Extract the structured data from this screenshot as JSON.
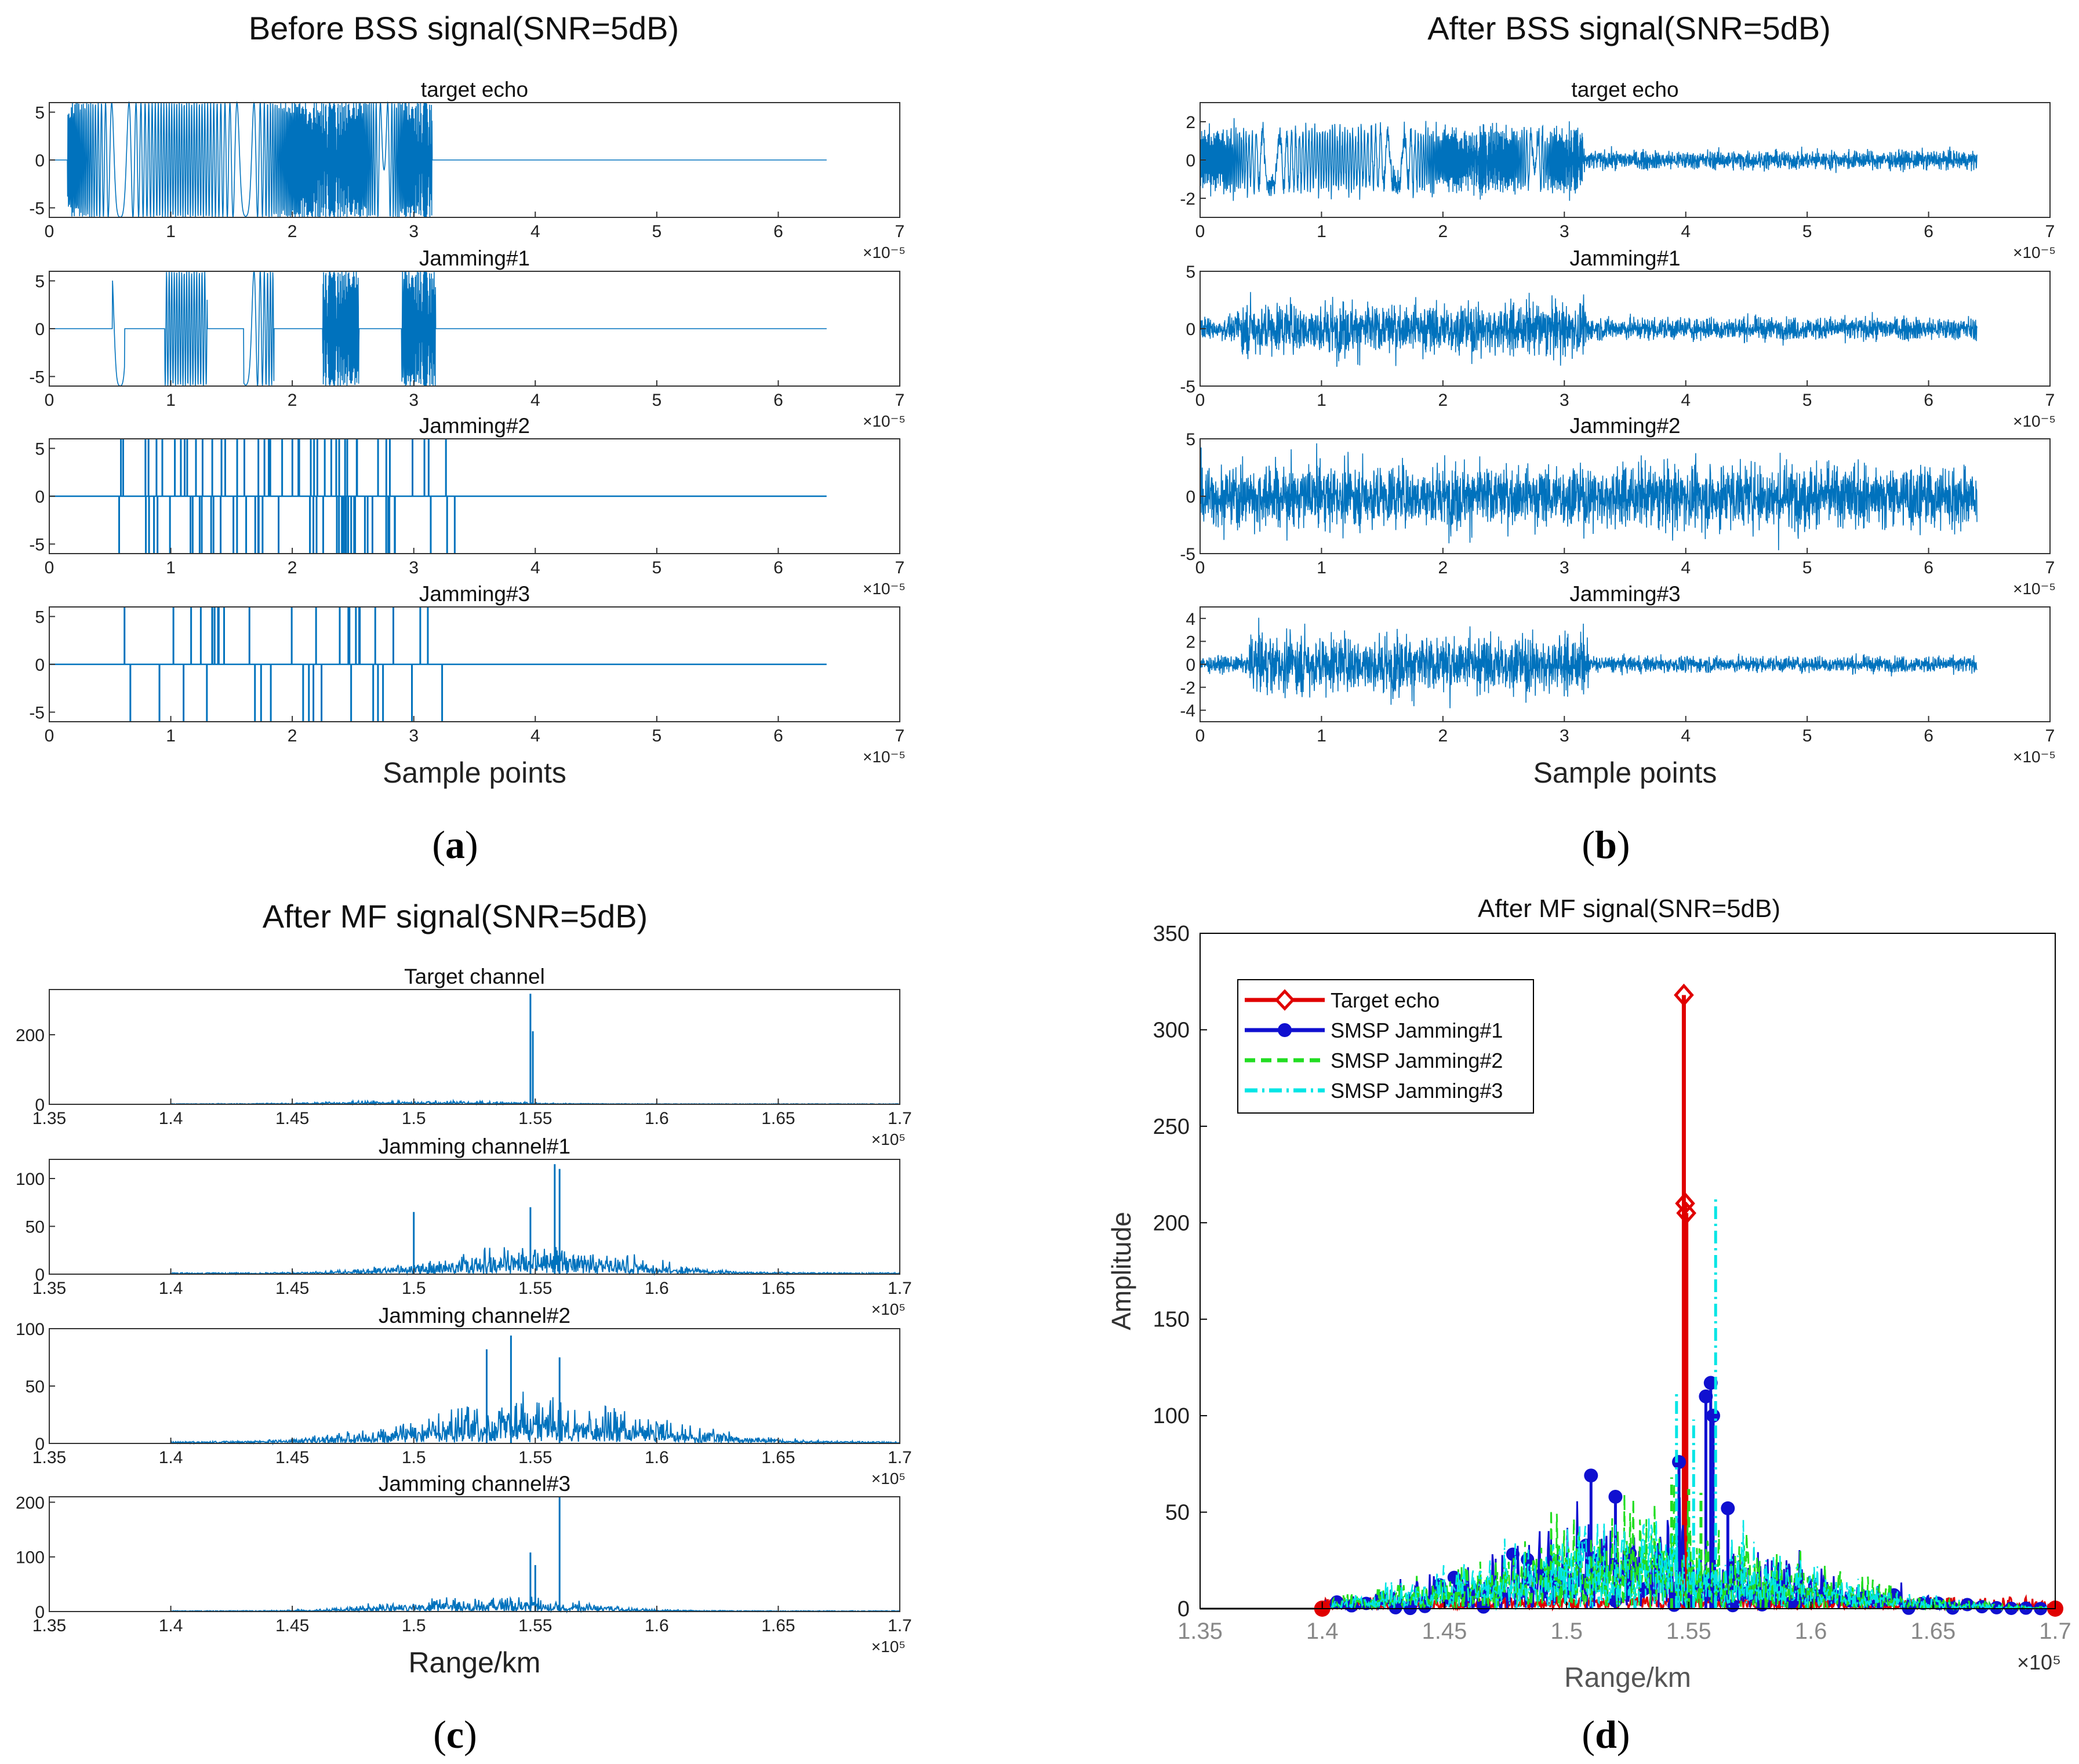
{
  "colors": {
    "signal": "#0072BD",
    "target_echo": "#E00000",
    "jam1": "#1010D0",
    "jam2": "#22DD22",
    "jam3": "#00E5E5"
  },
  "panels": {
    "a": {
      "caption_letter": "a",
      "title": "Before BSS signal(SNR=5dB)",
      "xlabel": "Sample points"
    },
    "b": {
      "caption_letter": "b",
      "title": "After BSS signal(SNR=5dB)",
      "xlabel": "Sample points"
    },
    "c": {
      "caption_letter": "c",
      "title": "After MF signal(SNR=5dB)",
      "xlabel": "Range/km"
    },
    "d": {
      "caption_letter": "d",
      "title": "After MF signal(SNR=5dB)",
      "xlabel": "Range/km",
      "ylabel": "Amplitude"
    }
  },
  "chart_data": [
    {
      "id": "a",
      "type": "line",
      "title": "Before BSS signal(SNR=5dB)",
      "xlabel": "Sample points",
      "x_multiplier": "×10⁻⁵",
      "xlim": [
        0,
        7
      ],
      "x_ticks": [
        "0",
        "1",
        "2",
        "3",
        "4",
        "5",
        "6",
        "7"
      ],
      "subplots": [
        {
          "title": "target echo",
          "ylim": [
            -6,
            6
          ],
          "y_ticks": [
            "5",
            "0",
            "-5"
          ],
          "y_tick_values": [
            5,
            0,
            -5
          ],
          "signal": {
            "kind": "chirp",
            "amplitude": 6,
            "segments": [
              [
                0.15,
                3.15
              ]
            ],
            "signal_end": 6.4
          }
        },
        {
          "title": "Jamming#1",
          "ylim": [
            -6,
            6
          ],
          "y_ticks": [
            "5",
            "0",
            "-5"
          ],
          "y_tick_values": [
            5,
            0,
            -5
          ],
          "signal": {
            "kind": "chirp",
            "amplitude": 6,
            "segments": [
              [
                0.52,
                0.62
              ],
              [
                0.95,
                1.3
              ],
              [
                1.6,
                1.85
              ],
              [
                2.25,
                2.55
              ],
              [
                2.9,
                3.18
              ]
            ],
            "signal_end": 6.4
          }
        },
        {
          "title": "Jamming#2",
          "ylim": [
            -6,
            6
          ],
          "y_ticks": [
            "5",
            "0",
            "-5"
          ],
          "y_tick_values": [
            5,
            0,
            -5
          ],
          "signal": {
            "kind": "spikes",
            "amplitude": 6,
            "range": [
              0.55,
              3.35
            ],
            "count": 90,
            "signal_end": 6.4
          }
        },
        {
          "title": "Jamming#3",
          "ylim": [
            -6,
            6
          ],
          "y_ticks": [
            "5",
            "0",
            "-5"
          ],
          "y_tick_values": [
            5,
            0,
            -5
          ],
          "signal": {
            "kind": "spikes",
            "amplitude": 6,
            "range": [
              0.55,
              3.3
            ],
            "count": 40,
            "signal_end": 6.4
          }
        }
      ]
    },
    {
      "id": "b",
      "type": "line",
      "title": "After BSS signal(SNR=5dB)",
      "xlabel": "Sample points",
      "x_multiplier": "×10⁻⁵",
      "xlim": [
        0,
        7
      ],
      "x_ticks": [
        "0",
        "1",
        "2",
        "3",
        "4",
        "5",
        "6",
        "7"
      ],
      "subplots": [
        {
          "title": "target echo",
          "ylim": [
            -3,
            3
          ],
          "y_ticks": [
            "2",
            "0",
            "-2"
          ],
          "y_tick_values": [
            2,
            0,
            -2
          ],
          "signal": {
            "kind": "chirpnoise",
            "amplitude": 1.8,
            "segments": [
              [
                0.0,
                3.15
              ]
            ],
            "noise": 0.35,
            "signal_end": 6.4
          }
        },
        {
          "title": "Jamming#1",
          "ylim": [
            -5,
            5
          ],
          "y_ticks": [
            "5",
            "0",
            "-5"
          ],
          "y_tick_values": [
            5,
            0,
            -5
          ],
          "signal": {
            "kind": "noise",
            "amplitude": 1.6,
            "active": [
              0.3,
              3.2
            ],
            "noise": 0.7,
            "signal_end": 6.4
          }
        },
        {
          "title": "Jamming#2",
          "ylim": [
            -5,
            5
          ],
          "y_ticks": [
            "5",
            "0",
            "-5"
          ],
          "y_tick_values": [
            5,
            0,
            -5
          ],
          "signal": {
            "kind": "noise",
            "amplitude": 1.7,
            "active": [
              0.0,
              6.4
            ],
            "noise": 1.2,
            "signal_end": 6.4
          }
        },
        {
          "title": "Jamming#3",
          "ylim": [
            -5,
            5
          ],
          "y_ticks": [
            "4",
            "2",
            "0",
            "-2",
            "-4"
          ],
          "y_tick_values": [
            4,
            2,
            0,
            -2,
            -4
          ],
          "signal": {
            "kind": "noise",
            "amplitude": 1.9,
            "active": [
              0.4,
              3.2
            ],
            "noise": 0.5,
            "signal_end": 6.4
          }
        }
      ]
    },
    {
      "id": "c",
      "type": "line",
      "title": "After MF signal(SNR=5dB)",
      "xlabel": "Range/km",
      "x_multiplier": "×10⁵",
      "xlim": [
        1.35,
        1.7
      ],
      "x_ticks": [
        "1.35",
        "1.4",
        "1.45",
        "1.5",
        "1.55",
        "1.6",
        "1.65",
        "1.7"
      ],
      "subplots": [
        {
          "title": "Target channel",
          "ylim": [
            0,
            330
          ],
          "y_ticks": [
            "200",
            "0"
          ],
          "y_tick_values": [
            200,
            0
          ],
          "signal": {
            "kind": "mf",
            "base": 12,
            "start": 1.4,
            "end": 1.7,
            "center": 1.5,
            "width": 0.05,
            "peaks": [
              [
                1.548,
                318
              ],
              [
                1.549,
                210
              ]
            ]
          }
        },
        {
          "title": "Jamming channel#1",
          "ylim": [
            0,
            120
          ],
          "y_ticks": [
            "100",
            "50",
            "0"
          ],
          "y_tick_values": [
            100,
            50,
            0
          ],
          "signal": {
            "kind": "mf",
            "base": 32,
            "start": 1.4,
            "end": 1.7,
            "center": 1.55,
            "width": 0.055,
            "peaks": [
              [
                1.558,
                115
              ],
              [
                1.56,
                110
              ],
              [
                1.548,
                70
              ],
              [
                1.5,
                65
              ]
            ]
          }
        },
        {
          "title": "Jamming channel#2",
          "ylim": [
            0,
            100
          ],
          "y_ticks": [
            "100",
            "50",
            "0"
          ],
          "y_tick_values": [
            100,
            50,
            0
          ],
          "signal": {
            "kind": "mf",
            "base": 45,
            "start": 1.4,
            "end": 1.7,
            "center": 1.55,
            "width": 0.065,
            "peaks": [
              [
                1.54,
                94
              ],
              [
                1.53,
                82
              ],
              [
                1.56,
                75
              ]
            ]
          }
        },
        {
          "title": "Jamming channel#3",
          "ylim": [
            0,
            210
          ],
          "y_ticks": [
            "200",
            "100",
            "0"
          ],
          "y_tick_values": [
            200,
            100,
            0
          ],
          "signal": {
            "kind": "mf",
            "base": 32,
            "start": 1.4,
            "end": 1.7,
            "center": 1.53,
            "width": 0.05,
            "peaks": [
              [
                1.56,
                210
              ],
              [
                1.548,
                108
              ],
              [
                1.55,
                85
              ]
            ]
          }
        }
      ]
    },
    {
      "id": "d",
      "type": "line",
      "title": "After MF signal(SNR=5dB)",
      "xlabel": "Range/km",
      "ylabel": "Amplitude",
      "x_multiplier": "×10⁵",
      "xlim": [
        1.35,
        1.7
      ],
      "ylim": [
        0,
        350
      ],
      "x_ticks": [
        "1.35",
        "1.4",
        "1.45",
        "1.5",
        "1.55",
        "1.6",
        "1.65",
        "1.7"
      ],
      "x_tick_values": [
        1.35,
        1.4,
        1.45,
        1.5,
        1.55,
        1.6,
        1.65,
        1.7
      ],
      "y_ticks": [
        "0",
        "50",
        "100",
        "150",
        "200",
        "250",
        "300",
        "350"
      ],
      "y_tick_values": [
        0,
        50,
        100,
        150,
        200,
        250,
        300,
        350
      ],
      "legend_position": "top-left",
      "series": [
        {
          "name": "Target echo",
          "color": "#E00000",
          "style": "solid",
          "marker": "diamond",
          "base": 10,
          "peaks": [
            [
              1.548,
              318
            ],
            [
              1.5485,
              210
            ],
            [
              1.549,
              205
            ]
          ]
        },
        {
          "name": "SMSP Jamming#1",
          "color": "#1010D0",
          "style": "solid",
          "marker": "circle",
          "base": 40,
          "peaks": [
            [
              1.559,
              117
            ],
            [
              1.557,
              110
            ],
            [
              1.56,
              100
            ],
            [
              1.546,
              76
            ],
            [
              1.51,
              69
            ],
            [
              1.52,
              58
            ],
            [
              1.566,
              52
            ]
          ]
        },
        {
          "name": "SMSP Jamming#2",
          "color": "#22DD22",
          "style": "dashed",
          "marker": "none",
          "base": 45,
          "peaks": [
            [
              1.543,
              68
            ],
            [
              1.55,
              62
            ],
            [
              1.555,
              60
            ]
          ]
        },
        {
          "name": "SMSP Jamming#3",
          "color": "#00E5E5",
          "style": "dashdot",
          "marker": "none",
          "base": 42,
          "peaks": [
            [
              1.561,
              213
            ],
            [
              1.545,
              113
            ],
            [
              1.552,
              98
            ]
          ]
        }
      ]
    }
  ]
}
